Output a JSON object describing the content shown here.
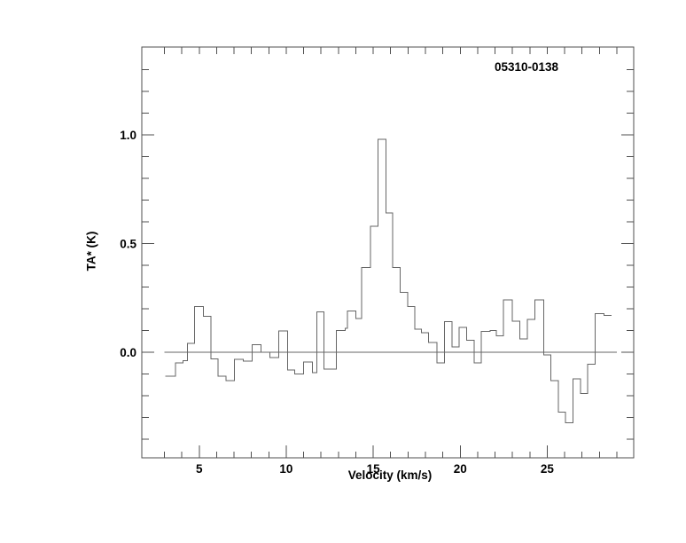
{
  "figure": {
    "background": "#ffffff",
    "line_color": "#666666",
    "axis_color": "#4f4f4f",
    "text_color": "#000000",
    "source_label": "05310-0138"
  },
  "chart_data": {
    "type": "line",
    "subtype": "histogram-step-spectrum",
    "title": "05310-0138",
    "xlabel": "Velocity (km/s)",
    "ylabel": "TA* (K)",
    "xlim": [
      1.7,
      29.97
    ],
    "ylim": [
      -0.486,
      1.404
    ],
    "grid": false,
    "legend": false,
    "x_axis": {
      "minor_step": 1,
      "tick_start": 3,
      "tick_end": 29,
      "major_ticks": [
        5,
        10,
        15,
        20,
        25
      ],
      "major_labels": [
        "5",
        "10",
        "15",
        "20",
        "25"
      ]
    },
    "y_axis": {
      "minor_step": 0.1,
      "tick_start": -0.4,
      "tick_end": 1.3,
      "major_ticks": [
        0.0,
        0.5,
        1.0
      ],
      "major_labels": [
        "0.0",
        "0.5",
        "1.0"
      ]
    },
    "baseline": {
      "y": 0.0,
      "x_from": 3.0,
      "x_to": 29.0
    },
    "channel_edges_kms": [
      3.04,
      3.63,
      4.06,
      4.33,
      4.73,
      5.24,
      5.67,
      6.09,
      6.55,
      7.03,
      7.54,
      8.05,
      8.56,
      9.07,
      9.58,
      10.09,
      10.49,
      11.0,
      11.51,
      11.77,
      12.18,
      12.89,
      13.4,
      13.53,
      14.0,
      14.33,
      14.84,
      15.27,
      15.74,
      16.12,
      16.54,
      16.97,
      17.39,
      17.78,
      18.19,
      18.67,
      19.09,
      19.52,
      19.94,
      20.37,
      20.79,
      21.22,
      21.73,
      22.07,
      22.49,
      23.0,
      23.43,
      23.85,
      24.28,
      24.79,
      25.21,
      25.64,
      26.06,
      26.49,
      26.91,
      27.33,
      27.76,
      28.27,
      28.7
    ],
    "values_K": [
      -0.11,
      -0.05,
      -0.04,
      0.04,
      0.21,
      0.165,
      -0.03,
      -0.11,
      -0.13,
      -0.033,
      -0.042,
      0.035,
      0.0,
      -0.025,
      0.098,
      -0.082,
      -0.1,
      -0.046,
      -0.094,
      0.185,
      -0.078,
      0.1,
      0.11,
      0.19,
      0.155,
      0.39,
      0.58,
      0.98,
      0.64,
      0.39,
      0.275,
      0.21,
      0.105,
      0.09,
      0.045,
      -0.05,
      0.14,
      0.025,
      0.115,
      0.055,
      -0.05,
      0.095,
      0.1,
      0.075,
      0.24,
      0.143,
      0.06,
      0.15,
      0.24,
      -0.012,
      -0.13,
      -0.275,
      -0.325,
      -0.123,
      -0.19,
      -0.055,
      0.177,
      0.17
    ]
  }
}
